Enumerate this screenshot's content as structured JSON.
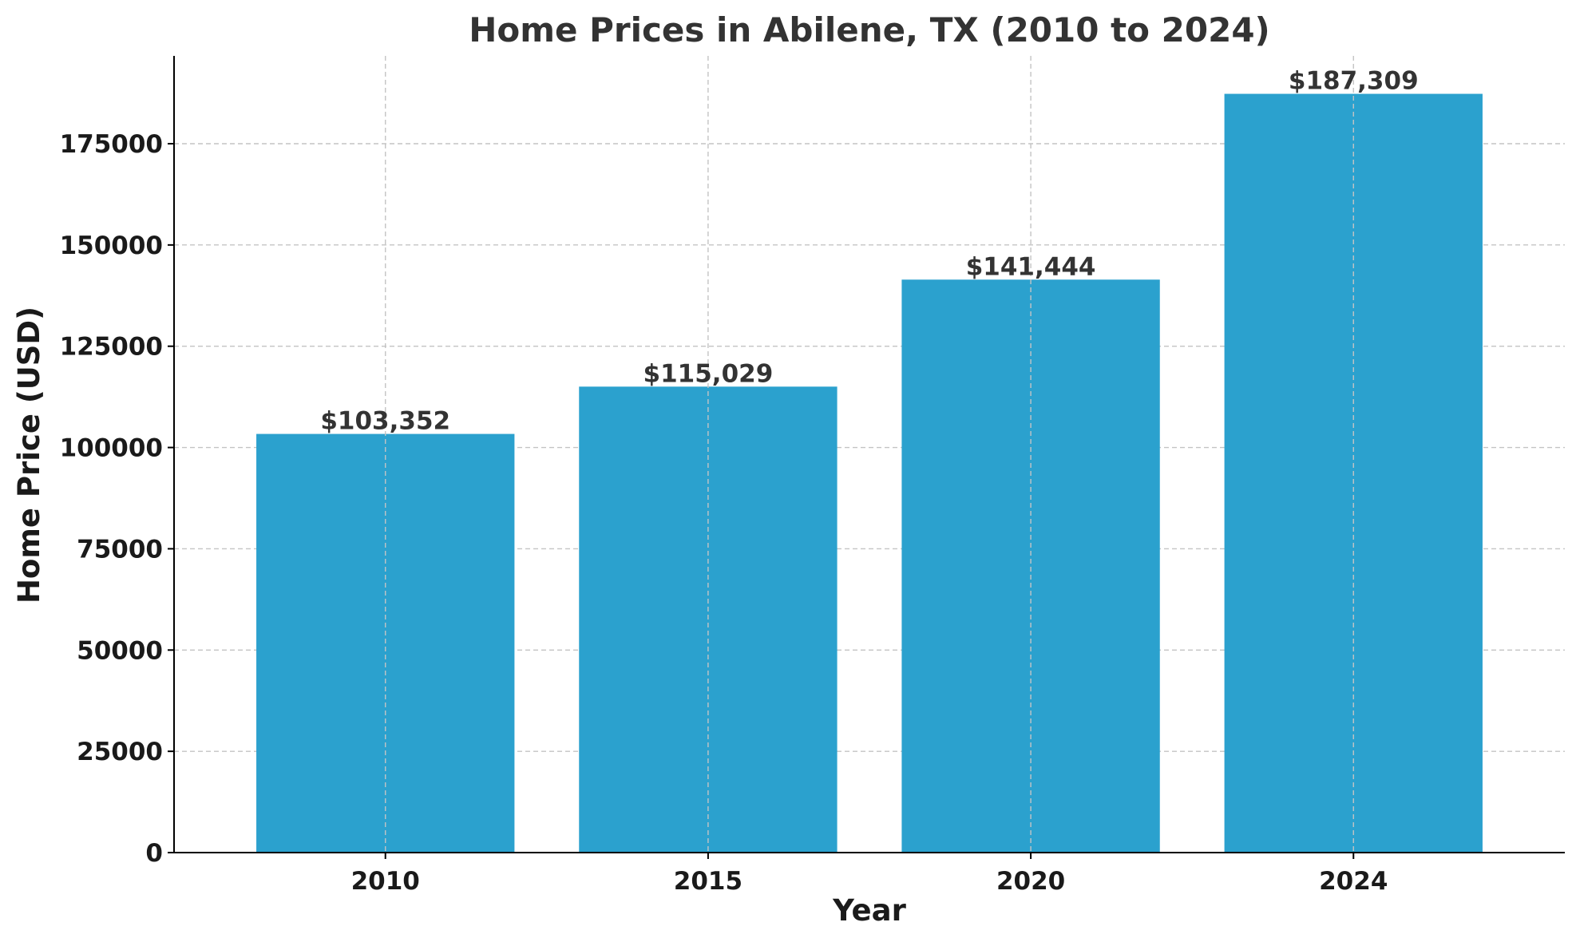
{
  "colors": {
    "bar": "#2ba1ce",
    "grid": "#c4c4c4",
    "text": "#333333"
  },
  "chart_data": {
    "type": "bar",
    "title": "Home Prices in Abilene, TX (2010 to 2024)",
    "xlabel": "Year",
    "ylabel": "Home Price (USD)",
    "categories": [
      "2010",
      "2015",
      "2020",
      "2024"
    ],
    "values": [
      103352,
      115029,
      141444,
      187309
    ],
    "data_labels": [
      "$103,352",
      "$115,029",
      "$141,444",
      "$187,309"
    ],
    "ylim": [
      0,
      196678
    ],
    "yticks": [
      0,
      25000,
      50000,
      75000,
      100000,
      125000,
      150000,
      175000
    ],
    "ytick_labels": [
      "0",
      "25000",
      "50000",
      "75000",
      "100000",
      "125000",
      "150000",
      "175000"
    ],
    "grid": true,
    "legend": "none"
  }
}
